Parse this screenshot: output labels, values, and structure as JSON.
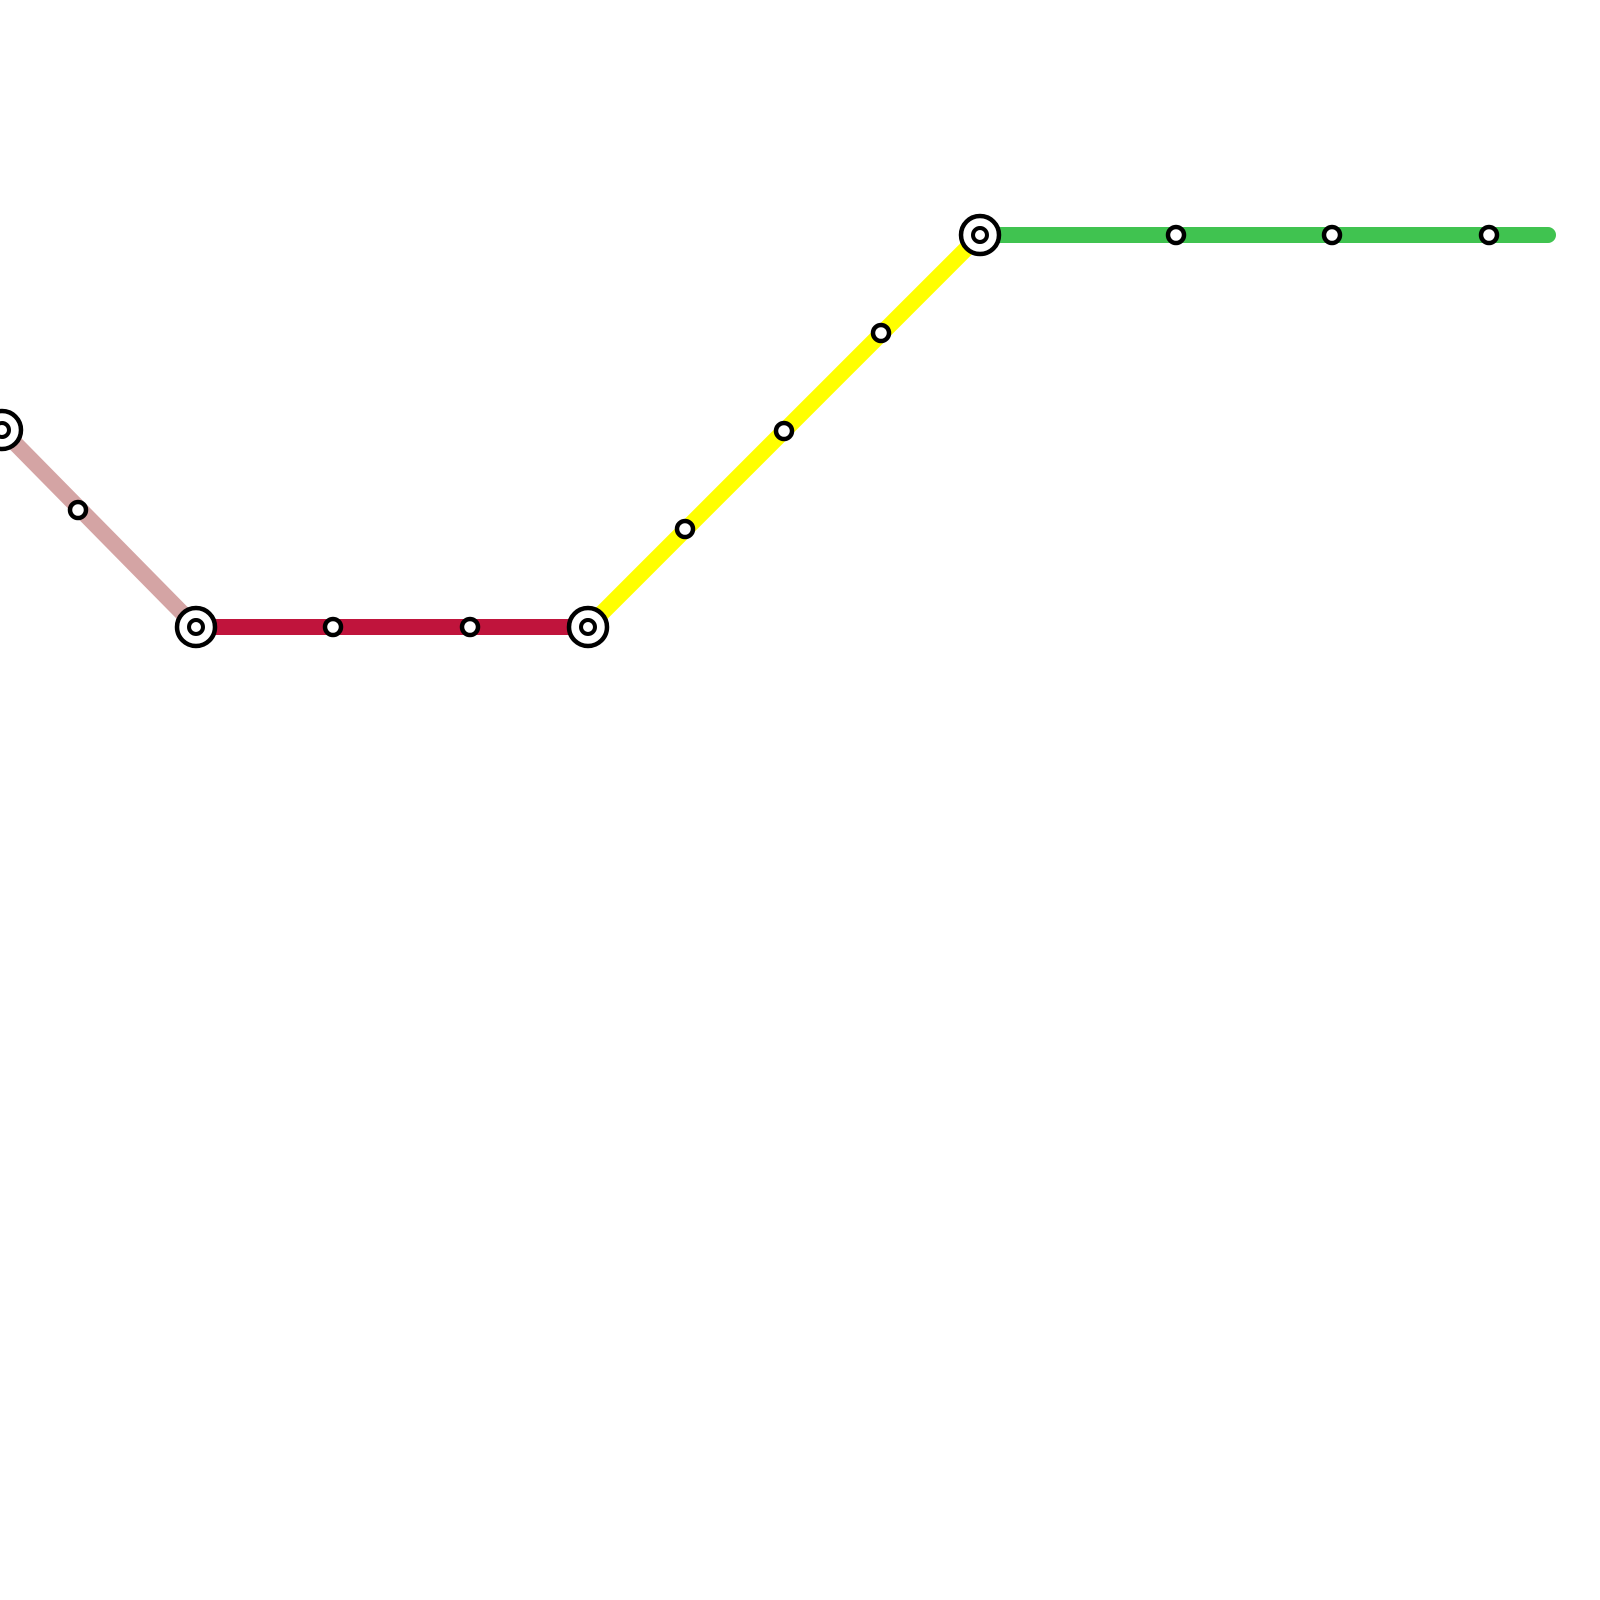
{
  "map": {
    "lines": [
      {
        "id": "pink-line",
        "color": "#d4a4a4"
      },
      {
        "id": "red-line",
        "color": "#c0143c"
      },
      {
        "id": "yellow-line",
        "color": "#ffff00"
      },
      {
        "id": "green-line",
        "color": "#40c350"
      }
    ],
    "stations": [
      {
        "kind": "interchange"
      },
      {
        "kind": "stop"
      },
      {
        "kind": "interchange"
      },
      {
        "kind": "stop"
      },
      {
        "kind": "stop"
      },
      {
        "kind": "interchange"
      },
      {
        "kind": "stop"
      },
      {
        "kind": "stop"
      },
      {
        "kind": "stop"
      },
      {
        "kind": "interchange"
      },
      {
        "kind": "stop"
      },
      {
        "kind": "stop"
      },
      {
        "kind": "stop"
      }
    ],
    "station_stroke": "#000000",
    "station_fill": "#ffffff"
  }
}
